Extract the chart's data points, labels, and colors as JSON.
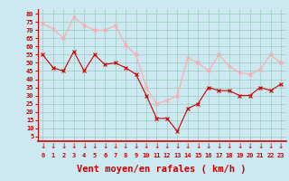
{
  "hours": [
    0,
    1,
    2,
    3,
    4,
    5,
    6,
    7,
    8,
    9,
    10,
    11,
    12,
    13,
    14,
    15,
    16,
    17,
    18,
    19,
    20,
    21,
    22,
    23
  ],
  "wind_avg": [
    55,
    47,
    45,
    57,
    45,
    55,
    49,
    50,
    47,
    43,
    30,
    16,
    16,
    8,
    22,
    25,
    35,
    33,
    33,
    30,
    30,
    35,
    33,
    37
  ],
  "wind_gust": [
    74,
    71,
    65,
    78,
    73,
    70,
    70,
    73,
    61,
    55,
    35,
    25,
    27,
    30,
    53,
    50,
    45,
    55,
    48,
    44,
    43,
    46,
    55,
    50
  ],
  "xlabel": "Vent moyen/en rafales ( km/h )",
  "yticks": [
    5,
    10,
    15,
    20,
    25,
    30,
    35,
    40,
    45,
    50,
    55,
    60,
    65,
    70,
    75,
    80
  ],
  "ylim": [
    2,
    83
  ],
  "xlim": [
    -0.5,
    23.5
  ],
  "bg_color": "#cce8f0",
  "grid_color": "#99ccbb",
  "line_avg_color": "#cc0000",
  "line_gust_color": "#ffaaaa",
  "marker_avg_color": "#cc0000",
  "marker_gust_color": "#ffaaaa",
  "tick_color": "#cc0000",
  "label_color": "#cc0000"
}
